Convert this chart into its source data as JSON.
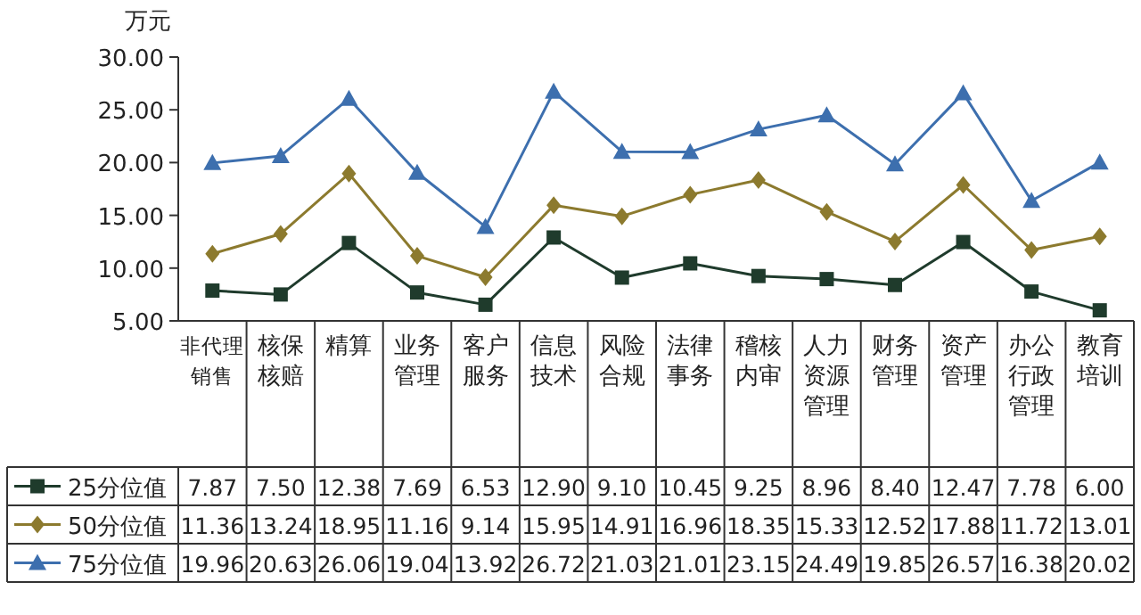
{
  "chart_data": {
    "type": "line",
    "ylabel": "万元",
    "categories": [
      "非代理销售",
      "核保核赔",
      "精算",
      "业务管理",
      "客户服务",
      "信息技术",
      "风险合规",
      "法律事务",
      "稽核内审",
      "人力资源管理",
      "财务管理",
      "资产管理",
      "办公行政管理",
      "教育培训"
    ],
    "series": [
      {
        "name": "25分位值",
        "color": "#1f3b2c",
        "marker": "square",
        "values": [
          7.87,
          7.5,
          12.38,
          7.69,
          6.53,
          12.9,
          9.1,
          10.45,
          9.25,
          8.96,
          8.4,
          12.47,
          7.78,
          6.0
        ],
        "value_labels": [
          "7.87",
          "7.50",
          "12.38",
          "7.69",
          "6.53",
          "12.90",
          "9.10",
          "10.45",
          "9.25",
          "8.96",
          "8.40",
          "12.47",
          "7.78",
          "6.00"
        ]
      },
      {
        "name": "50分位值",
        "color": "#8c7a2e",
        "marker": "diamond",
        "values": [
          11.36,
          13.24,
          18.95,
          11.16,
          9.14,
          15.95,
          14.91,
          16.96,
          18.35,
          15.33,
          12.52,
          17.88,
          11.72,
          13.01
        ],
        "value_labels": [
          "11.36",
          "13.24",
          "18.95",
          "11.16",
          "9.14",
          "15.95",
          "14.91",
          "16.96",
          "18.35",
          "15.33",
          "12.52",
          "17.88",
          "11.72",
          "13.01"
        ]
      },
      {
        "name": "75分位值",
        "color": "#3d6fae",
        "marker": "triangle",
        "values": [
          19.96,
          20.63,
          26.06,
          19.04,
          13.92,
          26.72,
          21.03,
          21.01,
          23.15,
          24.49,
          19.85,
          26.57,
          16.38,
          20.02
        ],
        "value_labels": [
          "19.96",
          "20.63",
          "26.06",
          "19.04",
          "13.92",
          "26.72",
          "21.03",
          "21.01",
          "23.15",
          "24.49",
          "19.85",
          "26.57",
          "16.38",
          "20.02"
        ]
      }
    ],
    "ylim": [
      5,
      30
    ],
    "yticks": [
      {
        "value": 5,
        "label": "5.00"
      },
      {
        "value": 10,
        "label": "10.00"
      },
      {
        "value": 15,
        "label": "15.00"
      },
      {
        "value": 20,
        "label": "20.00"
      },
      {
        "value": 25,
        "label": "25.00"
      },
      {
        "value": 30,
        "label": "30.00"
      }
    ],
    "legend": "bottom"
  }
}
